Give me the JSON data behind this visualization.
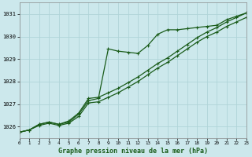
{
  "title": "Graphe pression niveau de la mer (hPa)",
  "bg_color": "#cce8ec",
  "grid_color": "#b0d4d8",
  "line_color": "#1a5c1a",
  "x_min": 0,
  "x_max": 23,
  "y_min": 1025.5,
  "y_max": 1031.5,
  "yticks": [
    1026,
    1027,
    1028,
    1029,
    1030,
    1031
  ],
  "xticks": [
    0,
    1,
    2,
    3,
    4,
    5,
    6,
    7,
    8,
    9,
    10,
    11,
    12,
    13,
    14,
    15,
    16,
    17,
    18,
    19,
    20,
    21,
    22,
    23
  ],
  "series": [
    [
      1025.75,
      1025.85,
      1026.1,
      1026.2,
      1026.1,
      1026.2,
      1026.55,
      1027.15,
      1027.25,
      1029.45,
      1029.35,
      1029.3,
      1029.25,
      1029.6,
      1030.1,
      1030.3,
      1030.3,
      1030.35,
      1030.4,
      1030.45,
      1030.5,
      1030.75,
      1030.9,
      1031.05
    ],
    [
      1025.75,
      1025.85,
      1026.1,
      1026.2,
      1026.1,
      1026.25,
      1026.6,
      1027.25,
      1027.3,
      1027.5,
      1027.7,
      1027.95,
      1028.2,
      1028.5,
      1028.8,
      1029.05,
      1029.35,
      1029.65,
      1029.95,
      1030.2,
      1030.4,
      1030.65,
      1030.85,
      1031.05
    ],
    [
      1025.75,
      1025.85,
      1026.05,
      1026.15,
      1026.05,
      1026.15,
      1026.45,
      1027.05,
      1027.1,
      1027.3,
      1027.5,
      1027.75,
      1028.0,
      1028.3,
      1028.6,
      1028.85,
      1029.15,
      1029.45,
      1029.75,
      1030.0,
      1030.2,
      1030.45,
      1030.65,
      1030.85
    ]
  ]
}
